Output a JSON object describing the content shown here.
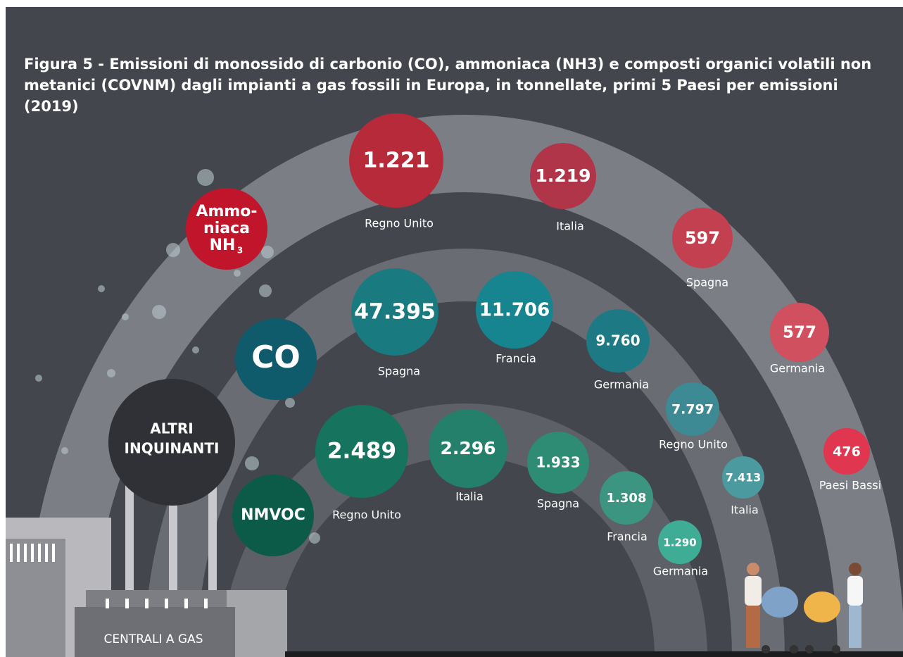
{
  "title": "Figura 5 - Emissioni di monossido di carbonio (CO), ammoniaca (NH3) e composti organici volatili non metanici (COVNM) dagli impianti a gas fossili in Europa, in tonnellate, primi 5 Paesi per emissioni (2019)",
  "groups": [
    {
      "label": [
        "Ammo-",
        "niaca",
        "NH"
      ],
      "subscript": "3",
      "items": [
        {
          "country": "Regno Unito",
          "value": "1.221"
        },
        {
          "country": "Italia",
          "value": "1.219"
        },
        {
          "country": "Spagna",
          "value": "597"
        },
        {
          "country": "Germania",
          "value": "577"
        },
        {
          "country": "Paesi Bassi",
          "value": "476"
        }
      ]
    },
    {
      "label": [
        "CO"
      ],
      "items": [
        {
          "country": "Spagna",
          "value": "47.395"
        },
        {
          "country": "Francia",
          "value": "11.706"
        },
        {
          "country": "Germania",
          "value": "9.760"
        },
        {
          "country": "Regno Unito",
          "value": "7.797"
        },
        {
          "country": "Italia",
          "value": "7.413"
        }
      ]
    },
    {
      "label": [
        "NMVOC"
      ],
      "items": [
        {
          "country": "Regno Unito",
          "value": "2.489"
        },
        {
          "country": "Italia",
          "value": "2.296"
        },
        {
          "country": "Spagna",
          "value": "1.933"
        },
        {
          "country": "Francia",
          "value": "1.308"
        },
        {
          "country": "Germania",
          "value": "1.290"
        }
      ]
    }
  ],
  "center_label": [
    "ALTRI",
    "INQUINANTI"
  ],
  "factory_label": "CENTRALI A GAS"
}
